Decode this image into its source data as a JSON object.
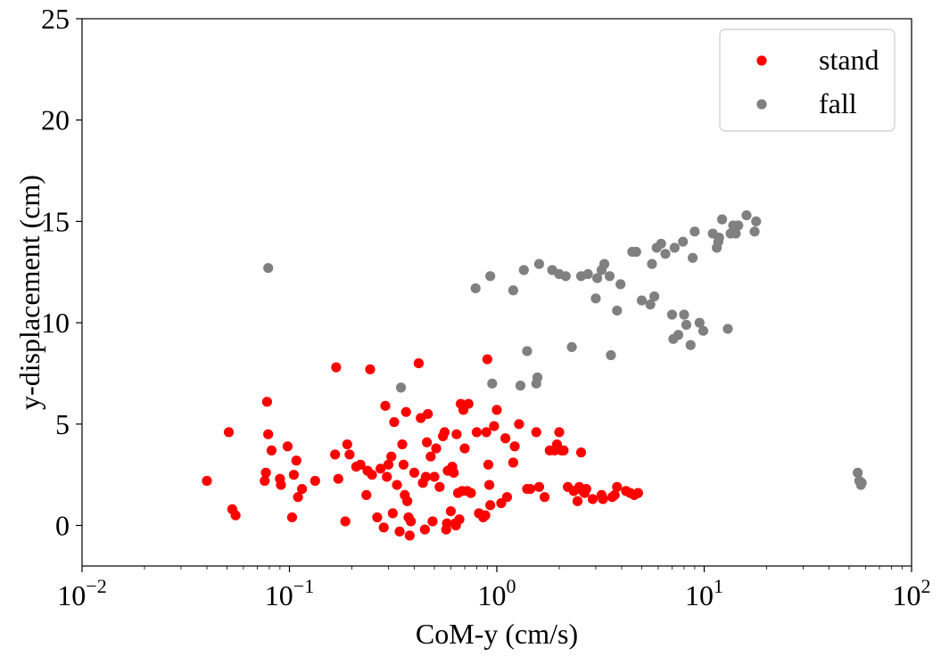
{
  "chart_data": {
    "type": "scatter",
    "xscale": "log",
    "xlabel": "CoM-y (cm/s)",
    "ylabel": "y-displacement (cm)",
    "xlim": [
      0.01,
      100
    ],
    "ylim": [
      -2,
      25
    ],
    "xticks": [
      {
        "value": 0.01,
        "base": "10",
        "exp": "−2"
      },
      {
        "value": 0.1,
        "base": "10",
        "exp": "−1"
      },
      {
        "value": 1,
        "base": "10",
        "exp": "0"
      },
      {
        "value": 10,
        "base": "10",
        "exp": "1"
      },
      {
        "value": 100,
        "base": "10",
        "exp": "2"
      }
    ],
    "yticks": [
      {
        "value": 0,
        "label": "0"
      },
      {
        "value": 5,
        "label": "5"
      },
      {
        "value": 10,
        "label": "10"
      },
      {
        "value": 15,
        "label": "15"
      },
      {
        "value": 20,
        "label": "20"
      },
      {
        "value": 25,
        "label": "25"
      }
    ],
    "grid": false,
    "legend": "top-right",
    "series": [
      {
        "name": "stand",
        "color": "#ff0000",
        "points": [
          [
            0.04,
            2.2
          ],
          [
            0.051,
            4.6
          ],
          [
            0.053,
            0.8
          ],
          [
            0.055,
            0.5
          ],
          [
            0.076,
            2.2
          ],
          [
            0.077,
            2.6
          ],
          [
            0.078,
            6.1
          ],
          [
            0.079,
            4.5
          ],
          [
            0.082,
            3.7
          ],
          [
            0.09,
            2.3
          ],
          [
            0.091,
            2.0
          ],
          [
            0.098,
            3.9
          ],
          [
            0.103,
            0.4
          ],
          [
            0.105,
            2.5
          ],
          [
            0.108,
            3.2
          ],
          [
            0.11,
            1.4
          ],
          [
            0.115,
            1.8
          ],
          [
            0.133,
            2.2
          ],
          [
            0.166,
            3.5
          ],
          [
            0.168,
            7.8
          ],
          [
            0.172,
            2.3
          ],
          [
            0.186,
            0.2
          ],
          [
            0.19,
            4.0
          ],
          [
            0.195,
            3.5
          ],
          [
            0.21,
            2.9
          ],
          [
            0.22,
            3.0
          ],
          [
            0.235,
            1.5
          ],
          [
            0.238,
            2.7
          ],
          [
            0.245,
            7.7
          ],
          [
            0.25,
            2.5
          ],
          [
            0.265,
            0.4
          ],
          [
            0.275,
            2.8
          ],
          [
            0.285,
            -0.1
          ],
          [
            0.29,
            5.9
          ],
          [
            0.295,
            2.4
          ],
          [
            0.3,
            3.0
          ],
          [
            0.31,
            3.4
          ],
          [
            0.315,
            0.6
          ],
          [
            0.32,
            5.1
          ],
          [
            0.33,
            2.0
          ],
          [
            0.34,
            -0.3
          ],
          [
            0.35,
            4.0
          ],
          [
            0.355,
            3.0
          ],
          [
            0.36,
            1.5
          ],
          [
            0.365,
            5.6
          ],
          [
            0.37,
            1.2
          ],
          [
            0.375,
            0.4
          ],
          [
            0.38,
            -0.5
          ],
          [
            0.385,
            0.2
          ],
          [
            0.4,
            2.6
          ],
          [
            0.42,
            8.0
          ],
          [
            0.43,
            5.3
          ],
          [
            0.44,
            2.1
          ],
          [
            0.45,
            -0.2
          ],
          [
            0.455,
            2.4
          ],
          [
            0.46,
            4.1
          ],
          [
            0.465,
            5.5
          ],
          [
            0.48,
            3.4
          ],
          [
            0.49,
            0.2
          ],
          [
            0.5,
            2.4
          ],
          [
            0.51,
            3.8
          ],
          [
            0.53,
            1.9
          ],
          [
            0.55,
            4.4
          ],
          [
            0.56,
            4.6
          ],
          [
            0.57,
            -0.2
          ],
          [
            0.575,
            0.1
          ],
          [
            0.58,
            2.7
          ],
          [
            0.6,
            0.7
          ],
          [
            0.61,
            2.9
          ],
          [
            0.62,
            2.6
          ],
          [
            0.63,
            0.1
          ],
          [
            0.635,
            0.0
          ],
          [
            0.64,
            4.5
          ],
          [
            0.65,
            1.6
          ],
          [
            0.66,
            0.3
          ],
          [
            0.67,
            6.0
          ],
          [
            0.68,
            1.7
          ],
          [
            0.69,
            5.7
          ],
          [
            0.7,
            3.8
          ],
          [
            0.72,
            1.7
          ],
          [
            0.73,
            6.0
          ],
          [
            0.75,
            1.6
          ],
          [
            0.8,
            4.6
          ],
          [
            0.82,
            0.6
          ],
          [
            0.86,
            0.4
          ],
          [
            0.88,
            0.5
          ],
          [
            0.89,
            4.6
          ],
          [
            0.9,
            8.2
          ],
          [
            0.91,
            3.0
          ],
          [
            0.92,
            2.0
          ],
          [
            0.93,
            1.0
          ],
          [
            0.97,
            4.9
          ],
          [
            1.0,
            5.7
          ],
          [
            1.05,
            1.1
          ],
          [
            1.1,
            4.3
          ],
          [
            1.12,
            1.4
          ],
          [
            1.2,
            3.1
          ],
          [
            1.22,
            3.9
          ],
          [
            1.28,
            5.0
          ],
          [
            1.4,
            1.8
          ],
          [
            1.45,
            1.8
          ],
          [
            1.55,
            4.6
          ],
          [
            1.6,
            1.9
          ],
          [
            1.7,
            1.4
          ],
          [
            1.8,
            3.7
          ],
          [
            1.9,
            3.7
          ],
          [
            1.95,
            4.0
          ],
          [
            2.0,
            4.6
          ],
          [
            2.05,
            3.7
          ],
          [
            2.1,
            3.7
          ],
          [
            2.2,
            1.9
          ],
          [
            2.35,
            1.7
          ],
          [
            2.45,
            1.2
          ],
          [
            2.5,
            1.9
          ],
          [
            2.55,
            3.6
          ],
          [
            2.6,
            1.7
          ],
          [
            2.65,
            1.6
          ],
          [
            2.7,
            1.8
          ],
          [
            2.9,
            1.3
          ],
          [
            3.2,
            1.5
          ],
          [
            3.25,
            1.3
          ],
          [
            3.6,
            1.4
          ],
          [
            3.7,
            1.5
          ],
          [
            3.8,
            1.9
          ],
          [
            4.2,
            1.7
          ],
          [
            4.4,
            1.6
          ],
          [
            4.6,
            1.5
          ],
          [
            4.8,
            1.6
          ]
        ]
      },
      {
        "name": "fall",
        "color": "#808080",
        "points": [
          [
            0.079,
            12.7
          ],
          [
            0.345,
            6.8
          ],
          [
            0.79,
            11.7
          ],
          [
            0.93,
            12.3
          ],
          [
            0.95,
            7.0
          ],
          [
            1.2,
            11.6
          ],
          [
            1.3,
            6.9
          ],
          [
            1.35,
            12.6
          ],
          [
            1.4,
            8.6
          ],
          [
            1.55,
            7.0
          ],
          [
            1.57,
            7.3
          ],
          [
            1.6,
            12.9
          ],
          [
            1.85,
            12.6
          ],
          [
            2.0,
            12.4
          ],
          [
            2.15,
            12.3
          ],
          [
            2.3,
            8.8
          ],
          [
            2.55,
            12.3
          ],
          [
            2.75,
            12.4
          ],
          [
            3.0,
            11.2
          ],
          [
            3.05,
            12.2
          ],
          [
            3.2,
            12.6
          ],
          [
            3.3,
            12.9
          ],
          [
            3.5,
            12.3
          ],
          [
            3.55,
            8.4
          ],
          [
            3.8,
            10.6
          ],
          [
            3.95,
            11.9
          ],
          [
            4.5,
            13.5
          ],
          [
            4.7,
            13.5
          ],
          [
            5.0,
            11.1
          ],
          [
            5.5,
            10.9
          ],
          [
            5.6,
            12.9
          ],
          [
            5.75,
            11.3
          ],
          [
            5.9,
            13.7
          ],
          [
            6.2,
            13.9
          ],
          [
            6.5,
            13.4
          ],
          [
            7.0,
            10.4
          ],
          [
            7.1,
            9.2
          ],
          [
            7.2,
            13.7
          ],
          [
            7.5,
            9.4
          ],
          [
            7.9,
            14.0
          ],
          [
            8.0,
            10.4
          ],
          [
            8.2,
            9.9
          ],
          [
            8.6,
            8.9
          ],
          [
            8.8,
            13.2
          ],
          [
            9.0,
            14.5
          ],
          [
            9.5,
            10.0
          ],
          [
            9.9,
            9.6
          ],
          [
            11.0,
            14.4
          ],
          [
            11.5,
            13.7
          ],
          [
            11.7,
            14.0
          ],
          [
            11.8,
            14.2
          ],
          [
            12.2,
            15.1
          ],
          [
            13.0,
            9.7
          ],
          [
            13.4,
            14.4
          ],
          [
            13.8,
            14.8
          ],
          [
            14.2,
            14.4
          ],
          [
            14.6,
            14.8
          ],
          [
            16.0,
            15.3
          ],
          [
            17.5,
            14.5
          ],
          [
            17.8,
            15.0
          ],
          [
            55,
            2.6
          ],
          [
            56,
            2.2
          ],
          [
            57,
            2.0
          ],
          [
            57.5,
            2.1
          ]
        ]
      }
    ]
  }
}
